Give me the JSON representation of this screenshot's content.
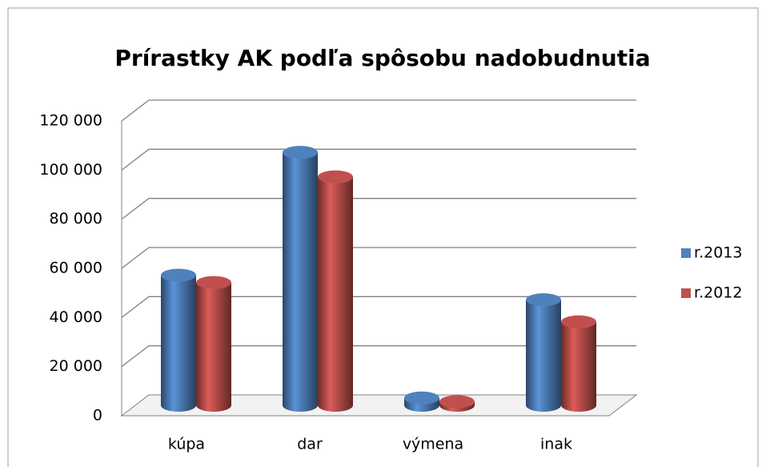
{
  "chart_data": {
    "type": "bar",
    "title": "Prírastky AK podľa spôsobu nadobudnutia",
    "categories": [
      "kúpa",
      "dar",
      "výmena",
      "inak"
    ],
    "series": [
      {
        "name": "r.2013",
        "color": "#4f81bd",
        "values": [
          53000,
          103000,
          3000,
          43000
        ]
      },
      {
        "name": "r.2012",
        "color": "#c0504d",
        "values": [
          50000,
          93000,
          1500,
          34000
        ]
      }
    ],
    "ylim": [
      0,
      120000
    ],
    "yticks": [
      0,
      {
        "value": 20000,
        "label": "20 000"
      },
      {
        "value": 40000,
        "label": "40 000"
      },
      {
        "value": 60000,
        "label": "60 000"
      },
      {
        "value": 80000,
        "label": "80 000"
      },
      {
        "value": 100000,
        "label": "100 000"
      },
      {
        "value": 120000,
        "label": "120 000"
      }
    ],
    "grid": true,
    "legend": "right"
  }
}
